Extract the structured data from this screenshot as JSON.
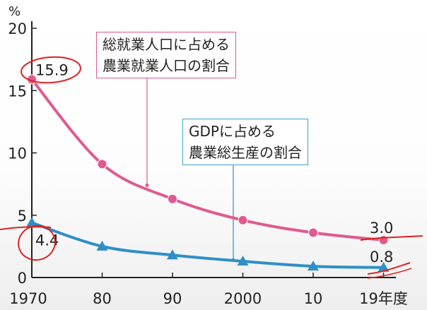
{
  "chart_data": {
    "type": "line",
    "unit_label": "%",
    "x_tick_labels": [
      "1970",
      "80",
      "90",
      "2000",
      "10",
      "19年度"
    ],
    "x": [
      1970,
      1980,
      1990,
      2000,
      2010,
      2019
    ],
    "ylim": [
      0,
      20
    ],
    "y_ticks": [
      0,
      5,
      10,
      15,
      20
    ],
    "grid": false,
    "series": [
      {
        "name": "総就業人口に占める農業就業人口の割合",
        "label_lines": [
          "総就業人口に占める",
          "農業就業人口の割合"
        ],
        "color": "#e05a8f",
        "marker": "circle",
        "values": [
          15.9,
          9.1,
          6.3,
          4.6,
          3.6,
          3.0
        ],
        "labels": {
          "first": "15.9",
          "last": "3.0"
        }
      },
      {
        "name": "GDPに占める農業総生産の割合",
        "label_lines": [
          "GDPに占める",
          "農業総生産の割合"
        ],
        "color": "#2f8fc6",
        "marker": "triangle",
        "values": [
          4.4,
          2.5,
          1.8,
          1.3,
          0.9,
          0.8
        ],
        "labels": {
          "first": "4.4",
          "last": "0.8"
        }
      }
    ],
    "annotation_color": "#e02020"
  }
}
